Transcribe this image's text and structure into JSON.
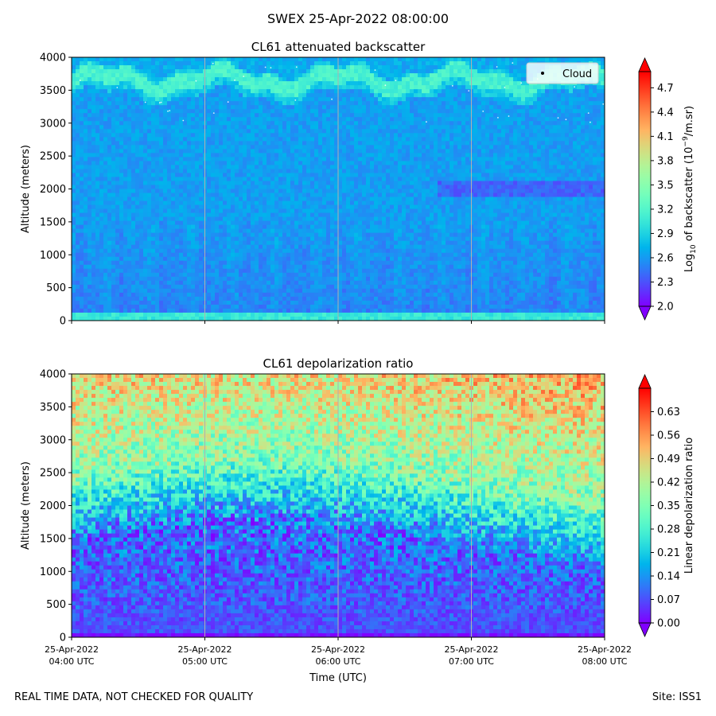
{
  "figure": {
    "title": "SWEX 25-Apr-2022 08:00:00",
    "footer_left": "REAL TIME DATA, NOT CHECKED FOR QUALITY",
    "footer_right": "Site: ISS1"
  },
  "chart_data": [
    {
      "type": "heatmap",
      "title": "CL61 attenuated backscatter",
      "xlabel": "",
      "ylabel": "Altitude (meters)",
      "x_ticks": [
        "25-Apr-2022 04:00 UTC",
        "25-Apr-2022 05:00 UTC",
        "25-Apr-2022 06:00 UTC",
        "25-Apr-2022 07:00 UTC",
        "25-Apr-2022 08:00 UTC"
      ],
      "x_tick_labels_visible": false,
      "ylim": [
        0,
        4000
      ],
      "y_ticks": [
        "0",
        "500",
        "1000",
        "1500",
        "2000",
        "2500",
        "3000",
        "3500",
        "4000"
      ],
      "grid": "vertical at hourly ticks",
      "legend": {
        "position": "top-right",
        "entries": [
          {
            "label": "Cloud",
            "marker": "dot",
            "color": "#000000"
          }
        ]
      },
      "colorbar": {
        "label_prefix": "Log",
        "label_sub": "10",
        "label_mid": " of backscatter (10",
        "label_sup": "−9",
        "label_suffix": "/m.sr)",
        "range": [
          2.0,
          4.9
        ],
        "ticks": [
          "2.0",
          "2.3",
          "2.6",
          "2.9",
          "3.2",
          "3.5",
          "3.8",
          "4.1",
          "4.4",
          "4.7"
        ],
        "extend": "both",
        "colormap": "rainbow"
      },
      "features": [
        {
          "description": "bright aerosol band",
          "altitude_range": [
            3500,
            3800
          ],
          "value": 3.15
        },
        {
          "description": "enhanced layer",
          "altitude_range": [
            1850,
            2100
          ],
          "time_range": [
            "06:45",
            "08:00"
          ],
          "value": 2.35
        },
        {
          "description": "surface layer",
          "altitude_range": [
            0,
            100
          ],
          "value": 3.2
        },
        {
          "description": "background",
          "altitude_range": [
            100,
            3400
          ],
          "value": 2.6
        }
      ]
    },
    {
      "type": "heatmap",
      "title": "CL61 depolarization ratio",
      "xlabel": "Time (UTC)",
      "ylabel": "Altitude (meters)",
      "x_ticks": [
        "25-Apr-2022 04:00 UTC",
        "25-Apr-2022 05:00 UTC",
        "25-Apr-2022 06:00 UTC",
        "25-Apr-2022 07:00 UTC",
        "25-Apr-2022 08:00 UTC"
      ],
      "x_tick_lines": [
        [
          "25-Apr-2022",
          "04:00 UTC"
        ],
        [
          "25-Apr-2022",
          "05:00 UTC"
        ],
        [
          "25-Apr-2022",
          "06:00 UTC"
        ],
        [
          "25-Apr-2022",
          "07:00 UTC"
        ],
        [
          "25-Apr-2022",
          "08:00 UTC"
        ]
      ],
      "ylim": [
        0,
        4000
      ],
      "y_ticks": [
        "0",
        "500",
        "1000",
        "1500",
        "2000",
        "2500",
        "3000",
        "3500",
        "4000"
      ],
      "grid": "vertical at hourly ticks",
      "colorbar": {
        "label": "Linear depolarization ratio",
        "range": [
          0.0,
          0.7
        ],
        "ticks": [
          "0.00",
          "0.07",
          "0.14",
          "0.21",
          "0.28",
          "0.35",
          "0.42",
          "0.49",
          "0.56",
          "0.63"
        ],
        "extend": "both",
        "colormap": "rainbow"
      },
      "features": [
        {
          "description": "low depolarization boundary layer",
          "altitude_range": [
            0,
            1600
          ],
          "value": 0.08
        },
        {
          "description": "transition zone",
          "altitude_range": [
            1600,
            2600
          ],
          "value": 0.28
        },
        {
          "description": "high depolarization aloft",
          "altitude_range": [
            2600,
            4000
          ],
          "value": 0.48
        }
      ]
    }
  ]
}
